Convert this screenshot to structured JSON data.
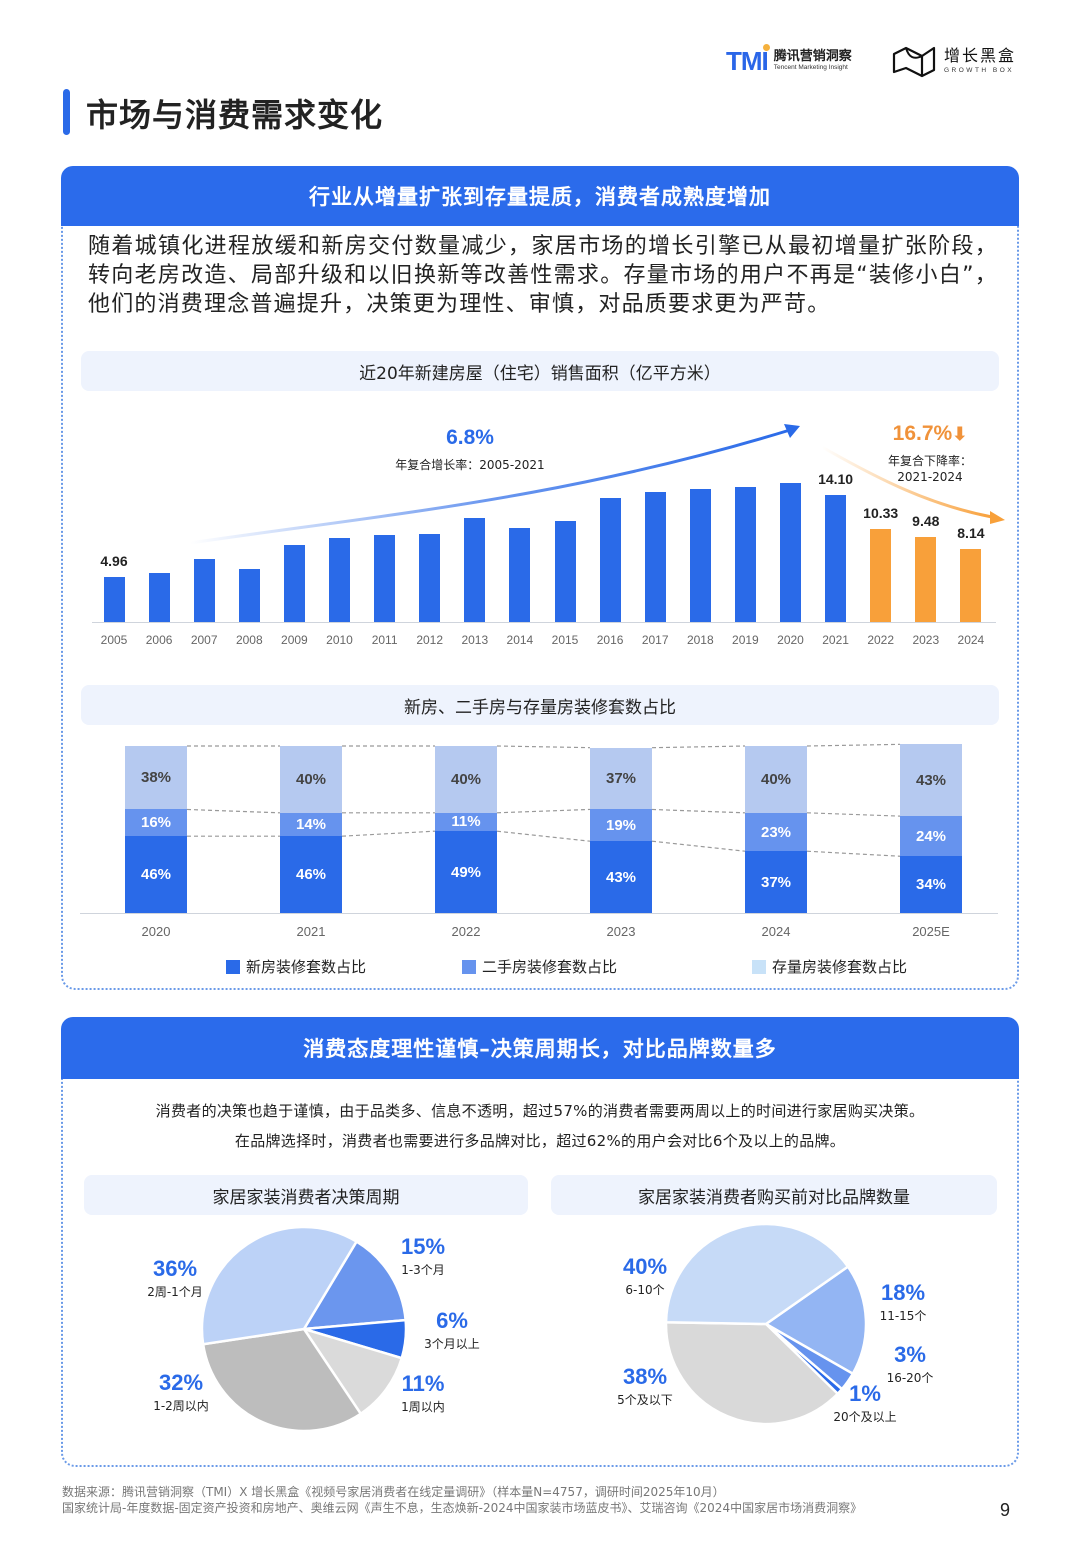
{
  "header": {
    "tmi_logo": {
      "mark": "TMI",
      "cn": "腾讯营销洞察",
      "en": "Tencent Marketing Insight"
    },
    "growth_box_logo": {
      "cn": "增长黑盒",
      "en": "GROWTH BOX"
    }
  },
  "page_title": "市场与消费需求变化",
  "section1": {
    "header": "行业从增量扩张到存量提质，消费者成熟度增加",
    "intro": "随着城镇化进程放缓和新房交付数量减少，家居市场的增长引擎已从最初增量扩张阶段，转向老房改造、局部升级和以旧换新等改善性需求。存量市场的用户不再是“装修小白”，他们的消费理念普遍提升，决策更为理性、审慎，对品质要求更为严苛。",
    "chart1_title": "近20年新建房屋（住宅）销售面积（亿平方米）",
    "cagr_up": {
      "value": "6.8%",
      "label": "年复合增长率：2005-2021"
    },
    "cagr_down": {
      "value": "16.7%",
      "label_line1": "年复合下降率：",
      "label_line2": "2021-2024"
    },
    "chart2_title": "新房、二手房与存量房装修套数占比",
    "legend": [
      "新房装修套数占比",
      "二手房装修套数占比",
      "存量房装修套数占比"
    ]
  },
  "section2": {
    "header": "消费态度理性谨慎–决策周期长，对比品牌数量多",
    "desc_line1": "消费者的决策也趋于谨慎，由于品类多、信息不透明，超过57%的消费者需要两周以上的时间进行家居购买决策。",
    "desc_line2": "在品牌选择时，消费者也需要进行多品牌对比，超过62%的用户会对比6个及以上的品牌。",
    "pie1_title": "家居家装消费者决策周期",
    "pie2_title": "家居家装消费者购买前对比品牌数量"
  },
  "footer": {
    "line1": "数据来源：腾讯营销洞察（TMI）X 增长黑盒《视频号家居消费者在线定量调研》（样本量N=4757，调研时间2025年10月）",
    "line2": "国家统计局-年度数据-固定资产投资和房地产、奥维云网《声生不息，生态焕新-2024中国家装市场蓝皮书》、艾瑞咨询《2024中国家居市场消费洞察》",
    "page_number": "9"
  },
  "colors": {
    "primary_blue": "#2a6ae8",
    "mid_blue": "#6693ee",
    "light_blue": "#b5c9f0",
    "orange": "#f8a03a",
    "grey": "#bdbdbd",
    "light_grey": "#dadada"
  },
  "chart_data": [
    {
      "type": "bar",
      "title": "近20年新建房屋（住宅）销售面积（亿平方米）",
      "categories": [
        "2005",
        "2006",
        "2007",
        "2008",
        "2009",
        "2010",
        "2011",
        "2012",
        "2013",
        "2014",
        "2015",
        "2016",
        "2017",
        "2018",
        "2019",
        "2020",
        "2021",
        "2022",
        "2023",
        "2024"
      ],
      "values": [
        4.96,
        5.5,
        7.0,
        5.9,
        8.6,
        9.3,
        9.7,
        9.8,
        11.6,
        10.5,
        11.2,
        13.8,
        14.5,
        14.8,
        15.0,
        15.5,
        14.1,
        10.33,
        9.48,
        8.14
      ],
      "labeled_values": {
        "2005": "4.96",
        "2021": "14.10",
        "2022": "10.33",
        "2023": "9.48",
        "2024": "8.14"
      },
      "bar_colors": {
        "2005-2021": "#2a6ae8",
        "2022-2024": "#f8a03a"
      },
      "annotations": [
        {
          "text": "6.8%",
          "subtext": "年复合增长率：2005-2021",
          "color": "#2a6ae8"
        },
        {
          "text": "16.7%↓",
          "subtext": "年复合下降率：2021-2024",
          "color": "#f0923a"
        }
      ],
      "xlabel": "",
      "ylabel": "",
      "grid": false
    },
    {
      "type": "bar",
      "stacked": true,
      "title": "新房、二手房与存量房装修套数占比",
      "categories": [
        "2020",
        "2021",
        "2022",
        "2023",
        "2024",
        "2025E"
      ],
      "series": [
        {
          "name": "新房装修套数占比",
          "values": [
            46,
            46,
            49,
            43,
            37,
            34
          ],
          "color": "#2a6ae8"
        },
        {
          "name": "二手房装修套数占比",
          "values": [
            16,
            14,
            11,
            19,
            23,
            24
          ],
          "color": "#6693ee"
        },
        {
          "name": "存量房装修套数占比",
          "values": [
            38,
            40,
            40,
            37,
            40,
            43
          ],
          "color": "#b5c9f0"
        }
      ],
      "unit": "%",
      "ylim": [
        0,
        100
      ],
      "legend_position": "bottom"
    },
    {
      "type": "pie",
      "title": "家居家装消费者决策周期",
      "categories": [
        "1-3个月",
        "3个月以上",
        "1周以内",
        "1-2周以内",
        "2周-1个月"
      ],
      "values": [
        15,
        6,
        11,
        32,
        36
      ],
      "colors": [
        "#6b96ee",
        "#2a6ae8",
        "#dadada",
        "#bdbdbd",
        "#bcd2f7"
      ]
    },
    {
      "type": "pie",
      "title": "家居家装消费者购买前对比品牌数量",
      "categories": [
        "11-15个",
        "16-20个",
        "20个及以上",
        "5个及以下",
        "6-10个"
      ],
      "values": [
        18,
        3,
        1,
        38,
        40
      ],
      "colors": [
        "#93b5f3",
        "#6693ee",
        "#2a6ae8",
        "#d9d9d9",
        "#c6daf7"
      ]
    }
  ],
  "bar_chart_display": {
    "labels": {
      "2005": "4.96",
      "2021": "14.10",
      "2022": "10.33",
      "2023": "9.48",
      "2024": "8.14"
    }
  },
  "stacked_display": [
    {
      "year": "2020",
      "new": "46%",
      "second": "16%",
      "stock": "38%"
    },
    {
      "year": "2021",
      "new": "46%",
      "second": "14%",
      "stock": "40%"
    },
    {
      "year": "2022",
      "new": "49%",
      "second": "11%",
      "stock": "40%"
    },
    {
      "year": "2023",
      "new": "43%",
      "second": "19%",
      "stock": "37%"
    },
    {
      "year": "2024",
      "new": "37%",
      "second": "23%",
      "stock": "40%"
    },
    {
      "year": "2025E",
      "new": "34%",
      "second": "24%",
      "stock": "43%"
    }
  ],
  "pie1_labels": [
    {
      "pct": "36%",
      "cat": "2周-1个月"
    },
    {
      "pct": "15%",
      "cat": "1-3个月"
    },
    {
      "pct": "6%",
      "cat": "3个月以上"
    },
    {
      "pct": "11%",
      "cat": "1周以内"
    },
    {
      "pct": "32%",
      "cat": "1-2周以内"
    }
  ],
  "pie2_labels": [
    {
      "pct": "40%",
      "cat": "6-10个"
    },
    {
      "pct": "18%",
      "cat": "11-15个"
    },
    {
      "pct": "3%",
      "cat": "16-20个"
    },
    {
      "pct": "1%",
      "cat": "20个及以上"
    },
    {
      "pct": "38%",
      "cat": "5个及以下"
    }
  ]
}
